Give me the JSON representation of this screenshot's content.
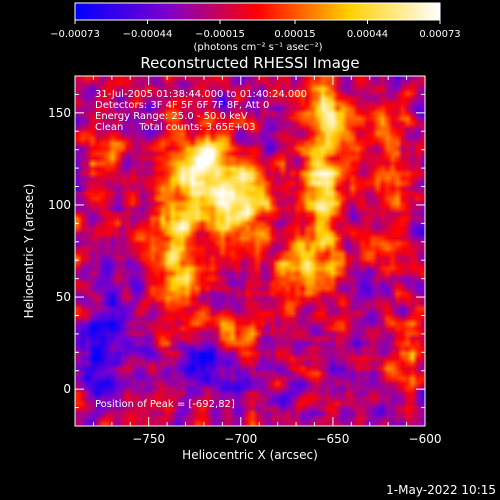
{
  "chart_data": {
    "type": "heatmap",
    "title": "Reconstructed RHESSI Image",
    "xlabel": "Heliocentric X (arcsec)",
    "ylabel": "Heliocentric Y (arcsec)",
    "xlim": [
      -790,
      -600
    ],
    "ylim": [
      -20,
      170
    ],
    "x_ticks": [
      -750,
      -700,
      -650,
      -600
    ],
    "x_tick_labels": [
      "−750",
      "−700",
      "−650",
      "−600"
    ],
    "y_ticks": [
      0,
      50,
      100,
      150
    ],
    "y_tick_labels": [
      "0",
      "50",
      "100",
      "150"
    ],
    "grid": false,
    "colorbar": {
      "position": "top",
      "range": [
        -0.00073,
        0.00073
      ],
      "tick_values": [
        -0.00073,
        -0.00044,
        -0.00015,
        0.00015,
        0.00044,
        0.00073
      ],
      "tick_labels": [
        "−0.00073",
        "−0.00044",
        "−0.00015",
        "0.00015",
        "0.00044",
        "0.00073"
      ],
      "units_label": "(photons cm⁻² s⁻¹ asec⁻²)",
      "colors": [
        "#0000ff",
        "#7a00d0",
        "#ff0000",
        "#ffd000",
        "#ffffff"
      ]
    },
    "info_lines": [
      "31-Jul-2005 01:38:44.000 to 01:40:24.000",
      "Detectors: 3F 4F 5F 6F 7F 8F, Att 0",
      "Energy Range: 25.0 - 50.0 keV",
      "Clean     Total counts: 3.65E+03"
    ],
    "peak_annotation": "Position of Peak = [-692,82]",
    "peak": {
      "x": -692,
      "y": 82
    },
    "bright_regions": [
      {
        "x": -722,
        "y": 118,
        "sigma_x": 14,
        "sigma_y": 16,
        "amp": 1.0
      },
      {
        "x": -700,
        "y": 100,
        "sigma_x": 12,
        "sigma_y": 14,
        "amp": 0.9
      },
      {
        "x": -735,
        "y": 70,
        "sigma_x": 10,
        "sigma_y": 20,
        "amp": 0.75
      },
      {
        "x": -655,
        "y": 110,
        "sigma_x": 10,
        "sigma_y": 30,
        "amp": 0.7
      },
      {
        "x": -650,
        "y": 150,
        "sigma_x": 8,
        "sigma_y": 12,
        "amp": 0.6
      },
      {
        "x": -665,
        "y": 65,
        "sigma_x": 10,
        "sigma_y": 12,
        "amp": 0.55
      },
      {
        "x": -700,
        "y": 30,
        "sigma_x": 10,
        "sigma_y": 10,
        "amp": 0.45
      },
      {
        "x": -620,
        "y": 120,
        "sigma_x": 8,
        "sigma_y": 20,
        "amp": 0.45
      },
      {
        "x": -610,
        "y": 20,
        "sigma_x": 8,
        "sigma_y": 15,
        "amp": 0.4
      },
      {
        "x": -775,
        "y": 130,
        "sigma_x": 8,
        "sigma_y": 15,
        "amp": 0.35
      }
    ],
    "dark_regions": [
      {
        "x": -775,
        "y": 20,
        "sigma_x": 12,
        "sigma_y": 15,
        "amp": 0.8
      },
      {
        "x": -720,
        "y": 10,
        "sigma_x": 12,
        "sigma_y": 10,
        "amp": 0.5
      },
      {
        "x": -760,
        "y": 60,
        "sigma_x": 8,
        "sigma_y": 10,
        "amp": 0.35
      }
    ]
  },
  "footer": {
    "date_stamp": "1-May-2022 10:15"
  }
}
